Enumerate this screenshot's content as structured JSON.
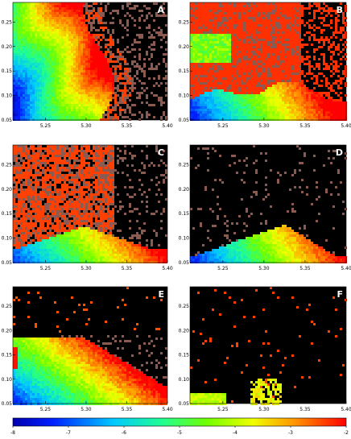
{
  "chart_data": {
    "type": "heatmap",
    "panels": [
      {
        "label": "A",
        "regime": "fan"
      },
      {
        "label": "B",
        "regime": "high-noise"
      },
      {
        "label": "C",
        "regime": "band"
      },
      {
        "label": "D",
        "regime": "band-narrow"
      },
      {
        "label": "E",
        "regime": "low-dense"
      },
      {
        "label": "F",
        "regime": "islands"
      }
    ],
    "xlim": [
      5.21,
      5.4
    ],
    "ylim": [
      0.05,
      0.29
    ],
    "x_ticks": [
      "5.25",
      "5.30",
      "5.35",
      "5.40"
    ],
    "x_tick_values": [
      5.25,
      5.3,
      5.35,
      5.4
    ],
    "y_ticks": [
      "0.05",
      "0.10",
      "0.15",
      "0.20",
      "0.25"
    ],
    "y_tick_values": [
      0.05,
      0.1,
      0.15,
      0.2,
      0.25
    ],
    "colorbar": {
      "range": [
        -8,
        -2
      ],
      "ticks": [
        "-8",
        "-7",
        "-6",
        "-5",
        "-4",
        "-3",
        "-2"
      ],
      "tick_values": [
        -8,
        -7,
        -6,
        -5,
        -4,
        -3,
        -2
      ]
    },
    "grid": false,
    "background_color": "#000000",
    "noise_color": "#8b5a50"
  }
}
